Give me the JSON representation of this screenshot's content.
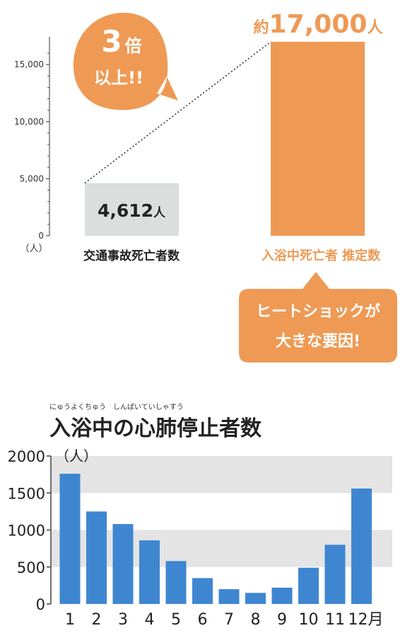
{
  "colors": {
    "orange": "#ee9a55",
    "gray": "#dcdedd",
    "blue": "#3f86d1",
    "axis": "#555555",
    "band": "#e4e4e4",
    "white": "#ffffff"
  },
  "top": {
    "callout_big": {
      "line1_num": "3",
      "line1_unit": "倍",
      "line2": "以上!!"
    },
    "callout_bottom": {
      "line1": "ヒートショックが",
      "line2": "大きな要因!"
    },
    "bar_labels": {
      "traffic_value": "4,612",
      "traffic_unit": "人",
      "bath_prefix": "約",
      "bath_value": "17,000",
      "bath_unit": "人"
    },
    "y_unit": "（人）"
  },
  "bottom": {
    "title": "入浴中の心肺停止者数",
    "ruby": "にゅうよくちゅう　しんぱいていしゃすう",
    "y_unit": "（人）",
    "month_suffix": "月"
  },
  "chart_data": [
    {
      "type": "bar",
      "categories": [
        "交通事故死亡者数",
        "入浴中死亡者 推定数"
      ],
      "values": [
        4612,
        17000
      ],
      "ylim": [
        0,
        17000
      ],
      "yticks": [
        0,
        5000,
        10000,
        15000
      ],
      "ytick_labels": [
        "0",
        "5,000",
        "10,000",
        "15,000"
      ],
      "ylabel": "（人）",
      "grid": false
    },
    {
      "type": "bar",
      "title": "入浴中の心肺停止者数",
      "categories": [
        "1",
        "2",
        "3",
        "4",
        "5",
        "6",
        "7",
        "8",
        "9",
        "10",
        "11",
        "12"
      ],
      "values": [
        1760,
        1250,
        1080,
        860,
        580,
        350,
        200,
        150,
        220,
        490,
        800,
        1560
      ],
      "ylim": [
        0,
        2000
      ],
      "yticks": [
        0,
        500,
        1000,
        1500,
        2000
      ],
      "ytick_labels": [
        "0",
        "500",
        "1000",
        "1500",
        "2000"
      ],
      "ylabel": "（人）",
      "grid": "bands"
    }
  ]
}
